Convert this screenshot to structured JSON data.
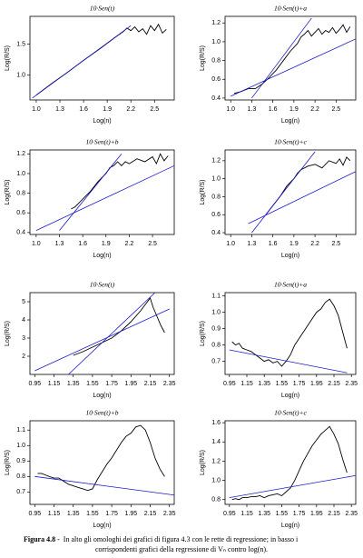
{
  "chart_data": [
    {
      "type": "line",
      "title": "10·Sen(t)",
      "xlabel": "Log(n)",
      "ylabel": "Log(R/S)",
      "xlim": [
        0.92,
        2.75
      ],
      "xticks": [
        {
          "value": 1,
          "label": "1.0"
        },
        1.3,
        1.6,
        1.9,
        2.2,
        2.5
      ],
      "ylim": [
        0.6,
        1.95
      ],
      "yticks": [
        {
          "value": 1,
          "label": "1.0"
        },
        1.5
      ],
      "series": [
        {
          "color": "#000000",
          "x": [
            1.0,
            1.2,
            1.4,
            1.6,
            1.8,
            2.0,
            2.1,
            2.15,
            2.2,
            2.25,
            2.3,
            2.35,
            2.4,
            2.45,
            2.5,
            2.55,
            2.6,
            2.65
          ],
          "values": [
            0.68,
            0.87,
            1.05,
            1.24,
            1.42,
            1.61,
            1.7,
            1.76,
            1.72,
            1.78,
            1.7,
            1.75,
            1.66,
            1.8,
            1.72,
            1.82,
            1.68,
            1.74
          ]
        },
        {
          "color": "#1a1acc",
          "x": [
            0.95,
            2.2
          ],
          "values": [
            0.63,
            1.8
          ]
        }
      ]
    },
    {
      "type": "line",
      "title": "10·Sen(t)+a",
      "xlabel": "Log(n)",
      "ylabel": "Log(R/S)",
      "xlim": [
        0.92,
        2.78
      ],
      "xticks": [
        {
          "value": 1,
          "label": "1.0"
        },
        1.3,
        1.6,
        1.9,
        2.2,
        2.5
      ],
      "ylim": [
        0.38,
        1.27
      ],
      "yticks": [
        0.4,
        0.6,
        0.8,
        {
          "value": 1,
          "label": "1.0"
        },
        1.2
      ],
      "series": [
        {
          "color": "#000000",
          "x": [
            1.05,
            1.15,
            1.25,
            1.35,
            1.45,
            1.55,
            1.65,
            1.75,
            1.85,
            1.95,
            2.0,
            2.05,
            2.1,
            2.15,
            2.2,
            2.25,
            2.3,
            2.35,
            2.4,
            2.45,
            2.5,
            2.55,
            2.6,
            2.65,
            2.7
          ],
          "values": [
            0.45,
            0.47,
            0.5,
            0.5,
            0.55,
            0.62,
            0.7,
            0.8,
            0.9,
            0.98,
            1.05,
            1.08,
            1.12,
            1.06,
            1.1,
            1.14,
            1.08,
            1.12,
            1.1,
            1.15,
            1.09,
            1.13,
            1.18,
            1.1,
            1.16
          ]
        },
        {
          "color": "#1a1acc",
          "x": [
            1.0,
            2.78
          ],
          "values": [
            0.42,
            1.03
          ]
        },
        {
          "color": "#1a1acc",
          "x": [
            1.3,
            2.15
          ],
          "values": [
            0.4,
            1.25
          ]
        }
      ]
    },
    {
      "type": "line",
      "title": "10·Sen(t)+b",
      "xlabel": "Log(n)",
      "ylabel": "Log(R/S)",
      "xlim": [
        0.92,
        2.78
      ],
      "xticks": [
        {
          "value": 1,
          "label": "1.0"
        },
        1.3,
        1.6,
        1.9,
        2.2,
        2.5
      ],
      "ylim": [
        0.38,
        1.24
      ],
      "yticks": [
        0.4,
        0.6,
        0.8,
        {
          "value": 1,
          "label": "1.0"
        },
        1.2
      ],
      "series": [
        {
          "color": "#000000",
          "x": [
            1.45,
            1.5,
            1.55,
            1.6,
            1.7,
            1.8,
            1.9,
            1.95,
            2.0,
            2.05,
            2.1,
            2.15,
            2.2,
            2.3,
            2.4,
            2.5,
            2.55,
            2.6,
            2.65,
            2.7
          ],
          "values": [
            0.64,
            0.66,
            0.7,
            0.74,
            0.82,
            0.92,
            1.0,
            1.06,
            1.08,
            1.12,
            1.08,
            1.12,
            1.1,
            1.15,
            1.12,
            1.17,
            1.1,
            1.2,
            1.13,
            1.18
          ]
        },
        {
          "color": "#1a1acc",
          "x": [
            1.0,
            2.78
          ],
          "values": [
            0.42,
            1.08
          ]
        },
        {
          "color": "#1a1acc",
          "x": [
            1.3,
            2.1
          ],
          "values": [
            0.42,
            1.2
          ]
        }
      ]
    },
    {
      "type": "line",
      "title": "10·Sen(t)+c",
      "xlabel": "Log(n)",
      "ylabel": "Log(R/S)",
      "xlim": [
        0.92,
        2.78
      ],
      "xticks": [
        {
          "value": 1,
          "label": "1.0"
        },
        1.3,
        1.6,
        1.9,
        2.2,
        2.5
      ],
      "ylim": [
        0.38,
        1.32
      ],
      "yticks": [
        0.4,
        0.6,
        0.8,
        {
          "value": 1,
          "label": "1.0"
        },
        1.2
      ],
      "series": [
        {
          "color": "#000000",
          "x": [
            1.5,
            1.55,
            1.6,
            1.7,
            1.8,
            1.9,
            1.95,
            2.0,
            2.1,
            2.2,
            2.3,
            2.4,
            2.5,
            2.55,
            2.6,
            2.65,
            2.7
          ],
          "values": [
            0.6,
            0.65,
            0.7,
            0.8,
            0.92,
            1.0,
            1.06,
            1.1,
            1.14,
            1.16,
            1.12,
            1.2,
            1.17,
            1.22,
            1.15,
            1.24,
            1.2
          ]
        },
        {
          "color": "#1a1acc",
          "x": [
            1.25,
            2.78
          ],
          "values": [
            0.5,
            1.08
          ]
        },
        {
          "color": "#1a1acc",
          "x": [
            1.3,
            2.2
          ],
          "values": [
            0.4,
            1.3
          ]
        }
      ]
    },
    {
      "type": "line",
      "title": "10·Sen(t)",
      "xlabel": "Log(n)",
      "ylabel": "Log(R/S)",
      "xlim": [
        0.9,
        2.4
      ],
      "xticks": [
        0.95,
        1.15,
        1.35,
        1.55,
        1.75,
        1.95,
        2.15,
        2.35
      ],
      "ylim": [
        1,
        5.5
      ],
      "yticks": [
        2,
        3,
        4,
        5
      ],
      "series": [
        {
          "color": "#000000",
          "x": [
            1.35,
            1.45,
            1.55,
            1.65,
            1.75,
            1.85,
            1.95,
            2.05,
            2.1,
            2.15,
            2.18,
            2.22,
            2.26,
            2.3
          ],
          "values": [
            2.05,
            2.25,
            2.5,
            2.75,
            3.0,
            3.4,
            3.9,
            4.5,
            4.85,
            5.2,
            4.7,
            4.2,
            3.7,
            3.3
          ]
        },
        {
          "color": "#1a1acc",
          "x": [
            0.95,
            2.35
          ],
          "values": [
            1.2,
            4.6
          ]
        },
        {
          "color": "#1a1acc",
          "x": [
            1.3,
            2.2
          ],
          "values": [
            1.0,
            5.5
          ]
        }
      ]
    },
    {
      "type": "line",
      "title": "10·Sen(t)+a",
      "xlabel": "Log(n)",
      "ylabel": "Log(R/S)",
      "xlim": [
        0.9,
        2.4
      ],
      "xticks": [
        0.95,
        1.15,
        1.35,
        1.55,
        1.75,
        1.95,
        2.15,
        2.35
      ],
      "ylim": [
        0.62,
        1.12
      ],
      "yticks": [
        0.7,
        0.8,
        0.9,
        {
          "value": 1,
          "label": "1.0"
        },
        1.1
      ],
      "series": [
        {
          "color": "#000000",
          "x": [
            0.98,
            1.02,
            1.06,
            1.1,
            1.15,
            1.2,
            1.25,
            1.3,
            1.35,
            1.4,
            1.45,
            1.5,
            1.55,
            1.6,
            1.65,
            1.7,
            1.75,
            1.8,
            1.85,
            1.9,
            1.95,
            2.0,
            2.05,
            2.1,
            2.15,
            2.2,
            2.25,
            2.3
          ],
          "values": [
            0.82,
            0.8,
            0.81,
            0.78,
            0.77,
            0.76,
            0.74,
            0.72,
            0.7,
            0.71,
            0.69,
            0.7,
            0.67,
            0.7,
            0.74,
            0.8,
            0.84,
            0.88,
            0.92,
            0.96,
            1.0,
            1.02,
            1.06,
            1.08,
            1.04,
            0.98,
            0.88,
            0.78
          ]
        },
        {
          "color": "#1a1acc",
          "x": [
            0.95,
            2.3
          ],
          "values": [
            0.77,
            0.63
          ]
        }
      ]
    },
    {
      "type": "line",
      "title": "10·Sen(t)+b",
      "xlabel": "Log(n)",
      "ylabel": "Log(R/S)",
      "xlim": [
        0.9,
        2.4
      ],
      "xticks": [
        0.95,
        1.15,
        1.35,
        1.55,
        1.75,
        1.95,
        2.15,
        2.35
      ],
      "ylim": [
        0.62,
        1.16
      ],
      "yticks": [
        0.7,
        0.8,
        0.9,
        {
          "value": 1,
          "label": "1.0"
        },
        1.1
      ],
      "series": [
        {
          "color": "#000000",
          "x": [
            0.98,
            1.02,
            1.06,
            1.1,
            1.15,
            1.2,
            1.25,
            1.3,
            1.35,
            1.4,
            1.45,
            1.5,
            1.55,
            1.6,
            1.65,
            1.7,
            1.75,
            1.8,
            1.85,
            1.9,
            1.95,
            2.0,
            2.05,
            2.1,
            2.15,
            2.2,
            2.25,
            2.3
          ],
          "values": [
            0.82,
            0.82,
            0.81,
            0.8,
            0.79,
            0.79,
            0.77,
            0.75,
            0.74,
            0.73,
            0.72,
            0.71,
            0.72,
            0.78,
            0.83,
            0.88,
            0.92,
            0.97,
            1.02,
            1.06,
            1.08,
            1.12,
            1.13,
            1.1,
            1.02,
            0.92,
            0.85,
            0.8
          ]
        },
        {
          "color": "#1a1acc",
          "x": [
            0.95,
            2.4
          ],
          "values": [
            0.8,
            0.68
          ]
        }
      ]
    },
    {
      "type": "line",
      "title": "10·Sen(t)+c",
      "xlabel": "Log(n)",
      "ylabel": "Log(R/S)",
      "xlim": [
        0.9,
        2.4
      ],
      "xticks": [
        0.95,
        1.15,
        1.35,
        1.55,
        1.75,
        1.95,
        2.15,
        2.35
      ],
      "ylim": [
        0.75,
        1.62
      ],
      "yticks": [
        0.8,
        {
          "value": 1,
          "label": "1.0"
        },
        1.2,
        1.4,
        1.6
      ],
      "series": [
        {
          "color": "#000000",
          "x": [
            0.98,
            1.02,
            1.06,
            1.1,
            1.15,
            1.2,
            1.25,
            1.3,
            1.35,
            1.4,
            1.45,
            1.5,
            1.55,
            1.6,
            1.65,
            1.7,
            1.75,
            1.8,
            1.85,
            1.9,
            1.95,
            2.0,
            2.05,
            2.1,
            2.15,
            2.2,
            2.25,
            2.3
          ],
          "values": [
            0.8,
            0.81,
            0.8,
            0.82,
            0.82,
            0.83,
            0.83,
            0.84,
            0.82,
            0.84,
            0.85,
            0.86,
            0.84,
            0.88,
            0.92,
            1.0,
            1.1,
            1.2,
            1.28,
            1.36,
            1.42,
            1.48,
            1.52,
            1.56,
            1.48,
            1.38,
            1.22,
            1.08
          ]
        },
        {
          "color": "#1a1acc",
          "x": [
            0.95,
            2.4
          ],
          "values": [
            0.82,
            1.05
          ]
        }
      ]
    }
  ],
  "caption": {
    "label": "Figura 4.8 -",
    "line1": "In alto gli omologhi dei grafici di figura 4.3 con le rette di regressione; in basso i",
    "line2": "corrispondenti grafici della regressione di Vₙ contro log(n)."
  }
}
